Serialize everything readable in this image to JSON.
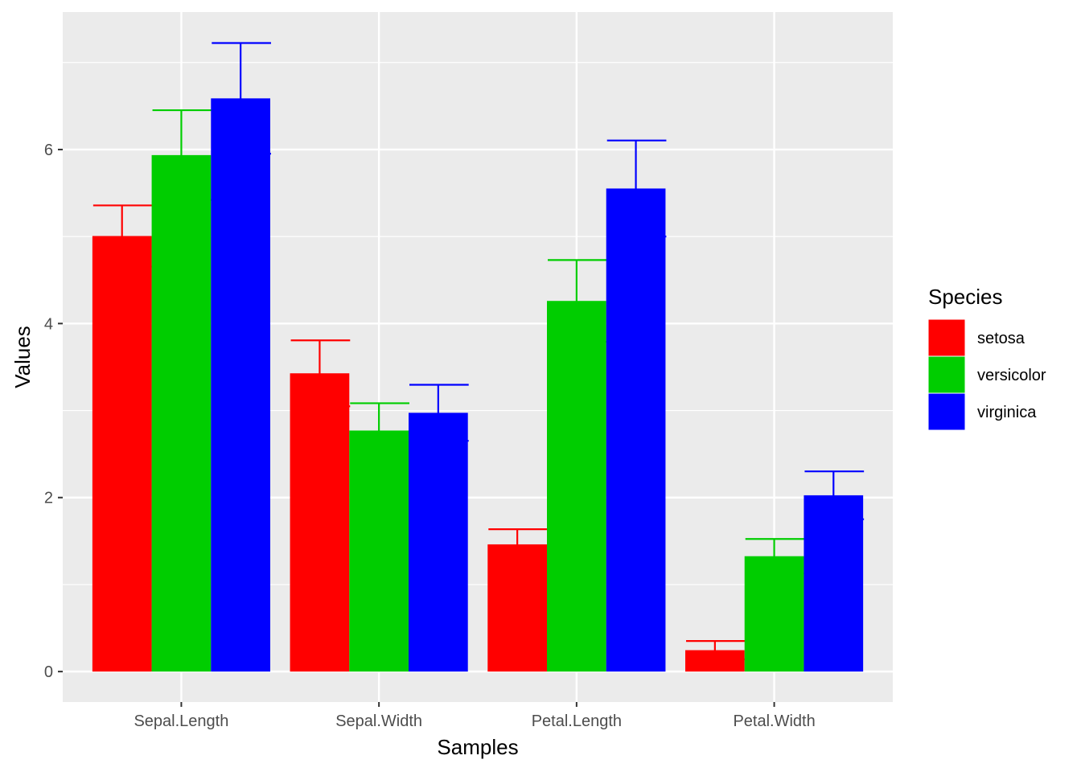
{
  "chart_data": {
    "type": "bar",
    "xlabel": "Samples",
    "ylabel": "Values",
    "categories": [
      "Sepal.Length",
      "Sepal.Width",
      "Petal.Length",
      "Petal.Width"
    ],
    "ylim": [
      -0.35,
      7.58
    ],
    "yticks": [
      0,
      2,
      4,
      6
    ],
    "ytick_labels": [
      "0",
      "2",
      "4",
      "6"
    ],
    "grid": true,
    "legend": {
      "title": "Species",
      "placement": "right"
    },
    "series": [
      {
        "name": "setosa",
        "color": "#FF0000",
        "values": [
          5.006,
          3.428,
          1.462,
          0.246
        ],
        "sd": [
          0.352,
          0.379,
          0.174,
          0.105
        ]
      },
      {
        "name": "versicolor",
        "color": "#00CD00",
        "values": [
          5.936,
          2.77,
          4.26,
          1.326
        ],
        "sd": [
          0.516,
          0.314,
          0.47,
          0.198
        ]
      },
      {
        "name": "virginica",
        "color": "#0000FF",
        "values": [
          6.588,
          2.974,
          5.552,
          2.026
        ],
        "sd": [
          0.636,
          0.322,
          0.552,
          0.275
        ]
      }
    ]
  }
}
